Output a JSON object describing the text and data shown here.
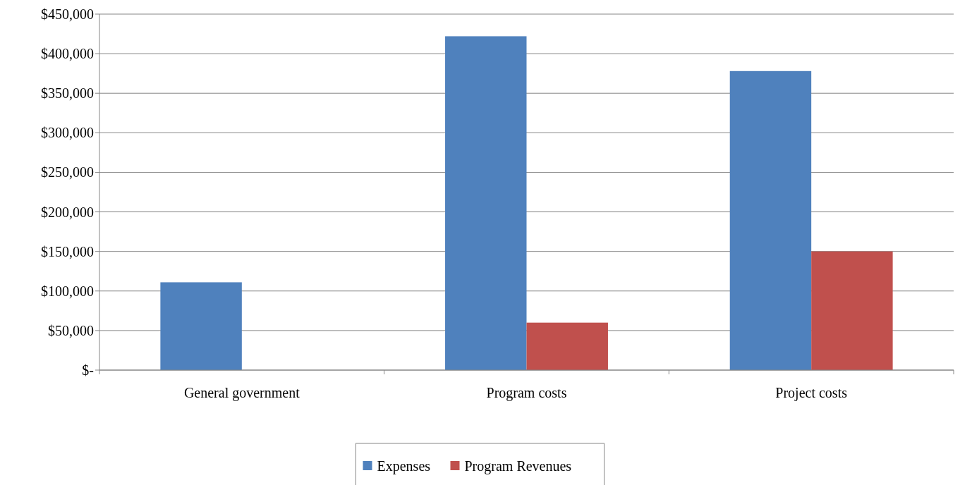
{
  "chart_data": {
    "type": "bar",
    "categories": [
      "General government",
      "Program costs",
      "Project costs"
    ],
    "series": [
      {
        "name": "Expenses",
        "color": "#4f81bd",
        "values": [
          111000,
          422000,
          378000
        ]
      },
      {
        "name": "Program Revenues",
        "color": "#c0504d",
        "values": [
          null,
          60000,
          150000
        ]
      }
    ],
    "ylim": [
      0,
      450000
    ],
    "yticks": [
      {
        "value": 0,
        "label": "$-"
      },
      {
        "value": 50000,
        "label": "$50,000"
      },
      {
        "value": 100000,
        "label": "$100,000"
      },
      {
        "value": 150000,
        "label": "$150,000"
      },
      {
        "value": 200000,
        "label": "$200,000"
      },
      {
        "value": 250000,
        "label": "$250,000"
      },
      {
        "value": 300000,
        "label": "$300,000"
      },
      {
        "value": 350000,
        "label": "$350,000"
      },
      {
        "value": 400000,
        "label": "$400,000"
      },
      {
        "value": 450000,
        "label": "$450,000"
      }
    ],
    "grid": "y",
    "legend": "bottom"
  }
}
